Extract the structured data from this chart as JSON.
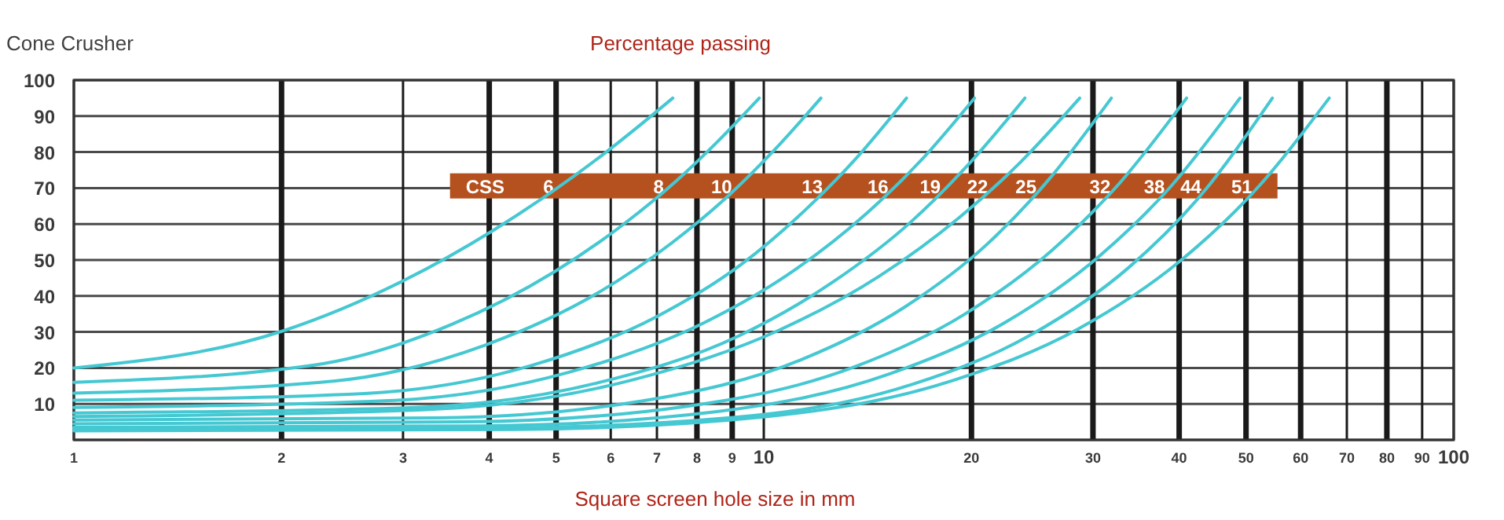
{
  "chart_data": {
    "type": "line",
    "title": "Cone Crusher",
    "ylabel": "Percentage passing",
    "xlabel": "Square screen hole size in mm",
    "log": "x",
    "grid": true,
    "legend": false,
    "marker": "none",
    "line_style": "solid",
    "xlim": [
      1,
      100
    ],
    "xticks": [
      1,
      2,
      3,
      4,
      5,
      6,
      7,
      8,
      9,
      10,
      20,
      30,
      40,
      50,
      60,
      70,
      80,
      90,
      100
    ],
    "ylim": [
      0,
      100
    ],
    "yticks": [
      {
        "value": 0,
        "label": null
      },
      10,
      20,
      30,
      40,
      50,
      60,
      70,
      80,
      90,
      100
    ],
    "annotations": [
      "CSS"
    ],
    "series": [
      {
        "name": "6",
        "color": "#45c8d2",
        "x": [
          1,
          2.01,
          3.0,
          4.05,
          4.95,
          5.81,
          6.54,
          7.38
        ],
        "values": [
          20,
          30.3,
          44.2,
          58.2,
          69.2,
          78.9,
          86.7,
          95
        ]
      },
      {
        "name": "8",
        "color": "#45c8d2",
        "x": [
          1,
          2.23,
          3.52,
          4.95,
          6.22,
          7.48,
          8.58,
          9.85
        ],
        "values": [
          16,
          20.8,
          32.0,
          46.5,
          59.5,
          72.1,
          83.0,
          95
        ]
      },
      {
        "name": "10",
        "color": "#45c8d2",
        "x": [
          1,
          2.39,
          3.94,
          5.73,
          7.35,
          8.97,
          10.4,
          12.1
        ],
        "values": [
          13,
          16.4,
          26.3,
          40.7,
          54.7,
          68.6,
          80.9,
          95
        ]
      },
      {
        "name": "13",
        "color": "#45c8d2",
        "x": [
          1,
          2.64,
          4.61,
          7.0,
          9.25,
          11.5,
          13.6,
          16.1
        ],
        "values": [
          11,
          12.9,
          20.7,
          34.3,
          48.6,
          64.0,
          78.2,
          95
        ]
      },
      {
        "name": "16",
        "color": "#45c8d2",
        "x": [
          1,
          2.86,
          5.22,
          8.2,
          11.1,
          14.1,
          16.9,
          20.2
        ],
        "values": [
          9,
          10.9,
          18.8,
          32.6,
          47.3,
          63.0,
          77.7,
          95
        ]
      },
      {
        "name": "19",
        "color": "#45c8d2",
        "x": [
          1,
          3.03,
          5.73,
          9.22,
          12.6,
          16.3,
          19.7,
          23.9
        ],
        "values": [
          7.5,
          8.9,
          15.8,
          29.0,
          43.9,
          60.4,
          76.1,
          95
        ]
      },
      {
        "name": "22",
        "color": "#45c8d2",
        "x": [
          1,
          3.24,
          6.34,
          10.5,
          14.7,
          19.2,
          23.5,
          28.7
        ],
        "values": [
          6.5,
          8.4,
          16.3,
          30.4,
          45.5,
          61.8,
          77.0,
          95
        ]
      },
      {
        "name": "25",
        "color": "#45c8d2",
        "x": [
          1,
          3.36,
          6.71,
          11.3,
          16.0,
          21.1,
          25.9,
          31.9
        ],
        "values": [
          5.5,
          6.1,
          10.9,
          22.2,
          36.9,
          54.5,
          72.4,
          95
        ]
      },
      {
        "name": "32",
        "color": "#45c8d2",
        "x": [
          1,
          3.67,
          7.71,
          13.5,
          19.5,
          26.2,
          32.8,
          41.0
        ],
        "values": [
          4.5,
          5.0,
          9.3,
          20.2,
          34.8,
          52.8,
          71.4,
          95
        ]
      },
      {
        "name": "38",
        "color": "#45c8d2",
        "x": [
          1,
          3.91,
          8.51,
          15.2,
          22.5,
          30.7,
          38.8,
          49.0
        ],
        "values": [
          3.5,
          3.9,
          7.8,
          18.3,
          32.9,
          51.2,
          70.2,
          95
        ]
      },
      {
        "name": "44",
        "color": "#45c8d2",
        "x": [
          1,
          4.06,
          9.02,
          16.4,
          24.5,
          33.8,
          43.0,
          54.6
        ],
        "values": [
          3,
          3.3,
          6.2,
          15.4,
          29.4,
          47.9,
          68.0,
          95
        ]
      },
      {
        "name": "51",
        "color": "#45c8d2",
        "x": [
          1,
          4.34,
          10.0,
          18.8,
          28.6,
          40.0,
          51.4,
          66.0
        ],
        "values": [
          2.5,
          2.9,
          6.4,
          16.5,
          30.9,
          49.5,
          69.1,
          95
        ]
      }
    ]
  }
}
